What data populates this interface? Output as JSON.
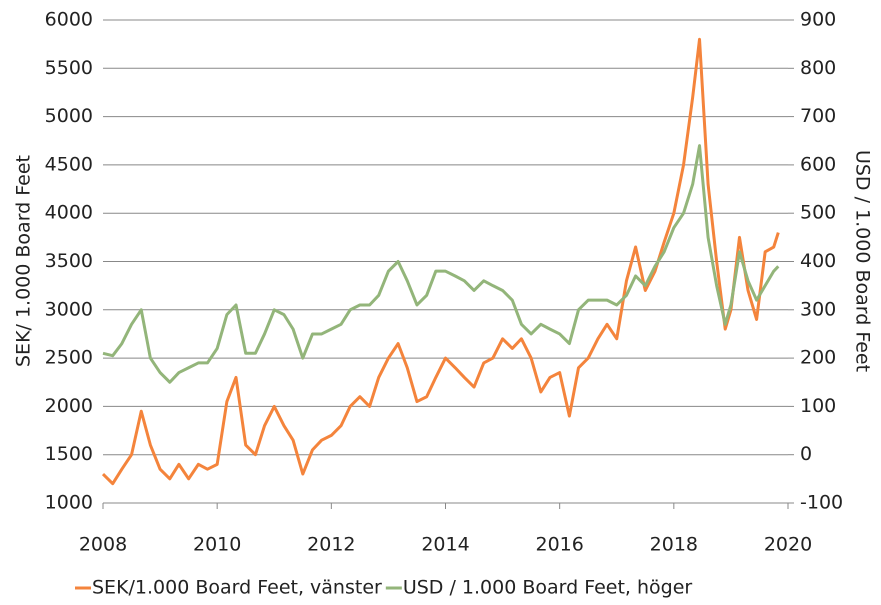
{
  "chart_data": {
    "type": "line",
    "ylabel": "SEK/ 1.000 Board Feet",
    "y2label": "USD / 1.000 Board Feet",
    "x": [
      2008.0,
      2008.17,
      2008.33,
      2008.5,
      2008.67,
      2008.83,
      2009.0,
      2009.17,
      2009.33,
      2009.5,
      2009.67,
      2009.83,
      2010.0,
      2010.17,
      2010.33,
      2010.5,
      2010.67,
      2010.83,
      2011.0,
      2011.17,
      2011.33,
      2011.5,
      2011.67,
      2011.83,
      2012.0,
      2012.17,
      2012.33,
      2012.5,
      2012.67,
      2012.83,
      2013.0,
      2013.17,
      2013.33,
      2013.5,
      2013.67,
      2013.83,
      2014.0,
      2014.17,
      2014.33,
      2014.5,
      2014.67,
      2014.83,
      2015.0,
      2015.17,
      2015.33,
      2015.5,
      2015.67,
      2015.83,
      2016.0,
      2016.17,
      2016.33,
      2016.5,
      2016.67,
      2016.83,
      2017.0,
      2017.17,
      2017.33,
      2017.5,
      2017.67,
      2017.83,
      2018.0,
      2018.17,
      2018.33,
      2018.45,
      2018.6,
      2018.75,
      2018.9,
      2019.0,
      2019.15,
      2019.3,
      2019.45,
      2019.6,
      2019.75,
      2019.83
    ],
    "series": [
      {
        "name": "SEK/1.000 Board Feet, vänster",
        "color": "#f4843c",
        "axis": "y",
        "values": [
          1300,
          1200,
          1350,
          1500,
          1950,
          1600,
          1350,
          1250,
          1400,
          1250,
          1400,
          1350,
          1400,
          2050,
          2300,
          1600,
          1500,
          1800,
          2000,
          1800,
          1650,
          1300,
          1550,
          1650,
          1700,
          1800,
          2000,
          2100,
          2000,
          2300,
          2500,
          2650,
          2400,
          2050,
          2100,
          2300,
          2500,
          2400,
          2300,
          2200,
          2450,
          2500,
          2700,
          2600,
          2700,
          2500,
          2150,
          2300,
          2350,
          1900,
          2400,
          2500,
          2700,
          2850,
          2700,
          3300,
          3650,
          3200,
          3400,
          3700,
          4000,
          4500,
          5200,
          5800,
          4300,
          3500,
          2800,
          3000,
          3750,
          3200,
          2900,
          3600,
          3650,
          3800
        ]
      },
      {
        "name": "USD / 1.000 Board Feet, höger",
        "color": "#93b57a",
        "axis": "y2",
        "values": [
          210,
          205,
          230,
          270,
          300,
          200,
          170,
          150,
          170,
          180,
          190,
          190,
          220,
          290,
          310,
          210,
          210,
          250,
          300,
          290,
          260,
          200,
          250,
          250,
          260,
          270,
          300,
          310,
          310,
          330,
          380,
          400,
          360,
          310,
          330,
          380,
          380,
          370,
          360,
          340,
          360,
          350,
          340,
          320,
          270,
          250,
          270,
          260,
          250,
          230,
          300,
          320,
          320,
          320,
          310,
          330,
          370,
          350,
          390,
          420,
          470,
          500,
          560,
          640,
          450,
          350,
          270,
          310,
          420,
          360,
          320,
          350,
          380,
          390
        ]
      }
    ],
    "xlim": [
      2008,
      2020
    ],
    "xticks": [
      2008,
      2010,
      2012,
      2014,
      2016,
      2018,
      2020
    ],
    "ylim": [
      1000,
      6000
    ],
    "yticks": [
      1000,
      1500,
      2000,
      2500,
      3000,
      3500,
      4000,
      4500,
      5000,
      5500,
      6000
    ],
    "y2lim": [
      -100,
      900
    ],
    "y2ticks": [
      -100,
      0,
      100,
      200,
      300,
      400,
      500,
      600,
      700,
      800,
      900
    ],
    "grid": true,
    "legend": "bottom"
  }
}
